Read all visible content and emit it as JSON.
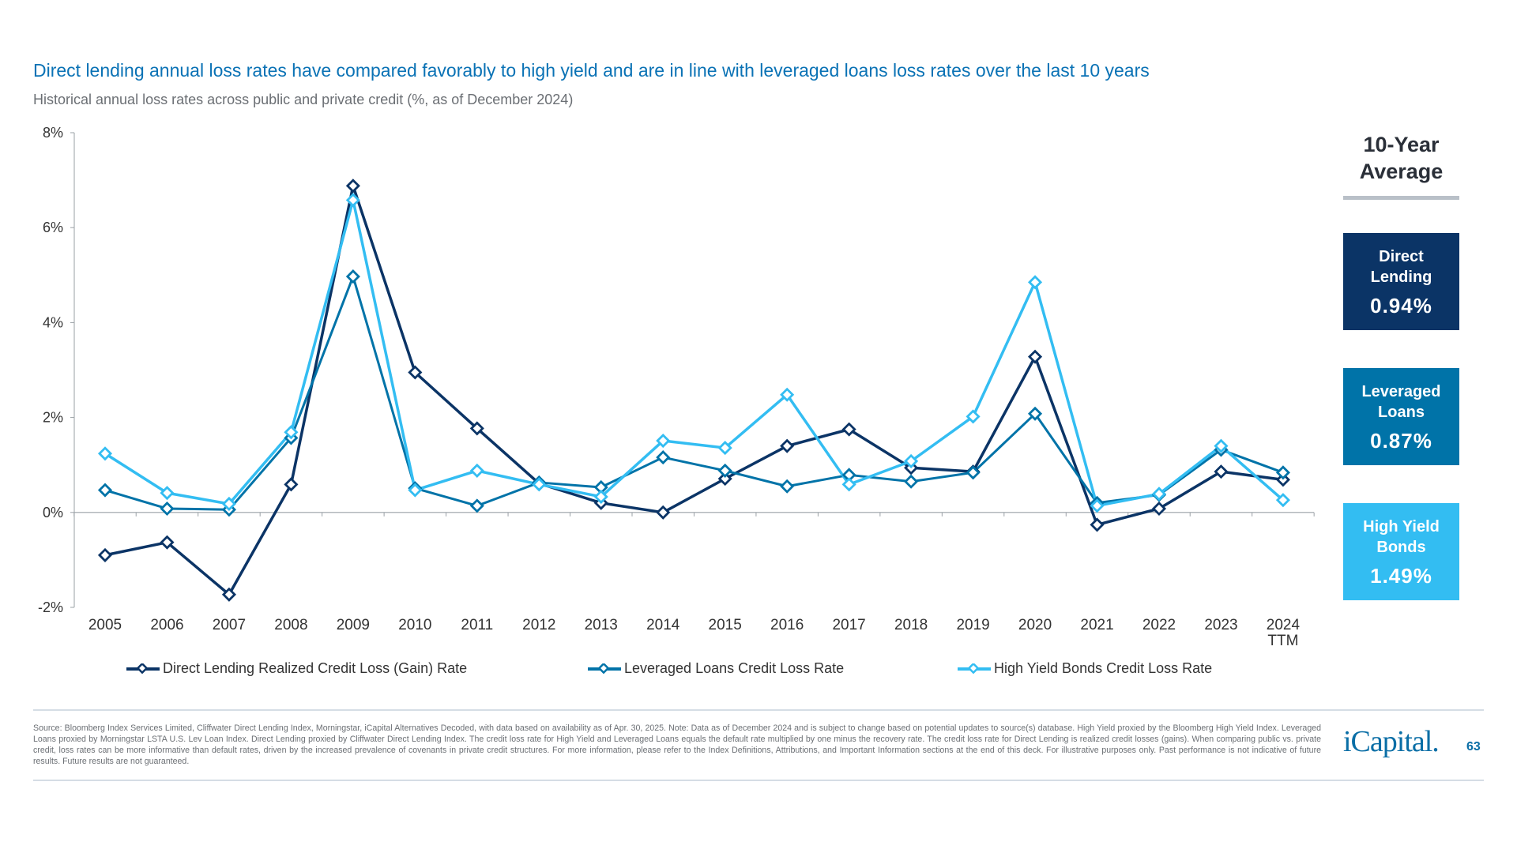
{
  "header": {
    "title": "Direct lending annual loss rates have compared favorably to high yield and are in line with leveraged loans loss rates over the last 10 years",
    "subtitle": "Historical annual loss rates across public and private credit (%, as of December 2024)"
  },
  "chart_data": {
    "type": "line",
    "title": "",
    "xlabel": "",
    "ylabel": "",
    "categories": [
      "2005",
      "2006",
      "2007",
      "2008",
      "2009",
      "2010",
      "2011",
      "2012",
      "2013",
      "2014",
      "2015",
      "2016",
      "2017",
      "2018",
      "2019",
      "2020",
      "2021",
      "2022",
      "2023",
      "2024\nTTM"
    ],
    "category_labels": [
      [
        "2005"
      ],
      [
        "2006"
      ],
      [
        "2007"
      ],
      [
        "2008"
      ],
      [
        "2009"
      ],
      [
        "2010"
      ],
      [
        "2011"
      ],
      [
        "2012"
      ],
      [
        "2013"
      ],
      [
        "2014"
      ],
      [
        "2015"
      ],
      [
        "2016"
      ],
      [
        "2017"
      ],
      [
        "2018"
      ],
      [
        "2019"
      ],
      [
        "2020"
      ],
      [
        "2021"
      ],
      [
        "2022"
      ],
      [
        "2023"
      ],
      [
        "2024",
        "TTM"
      ]
    ],
    "ylim": [
      -2,
      8
    ],
    "yticks": [
      -2,
      0,
      2,
      4,
      6,
      8
    ],
    "ytick_labels": [
      "-2%",
      "0%",
      "2%",
      "4%",
      "6%",
      "8%"
    ],
    "grid": false,
    "legend_position": "bottom",
    "marker": "diamond",
    "series": [
      {
        "name": "Direct Lending Realized Credit Loss (Gain) Rate",
        "color": "#0b3466",
        "values": [
          -0.9,
          -0.63,
          -1.73,
          0.59,
          6.88,
          2.95,
          1.77,
          0.61,
          0.2,
          0.0,
          0.71,
          1.4,
          1.75,
          0.94,
          0.86,
          3.28,
          -0.26,
          0.08,
          0.86,
          0.69
        ]
      },
      {
        "name": "Leveraged Loans Credit Loss Rate",
        "color": "#0073a8",
        "values": [
          0.47,
          0.08,
          0.06,
          1.57,
          4.97,
          0.51,
          0.14,
          0.63,
          0.53,
          1.16,
          0.88,
          0.55,
          0.79,
          0.65,
          0.84,
          2.08,
          0.2,
          0.37,
          1.32,
          0.84
        ]
      },
      {
        "name": "High Yield Bonds Credit Loss Rate",
        "color": "#33bdf2",
        "values": [
          1.24,
          0.41,
          0.18,
          1.69,
          6.58,
          0.47,
          0.88,
          0.59,
          0.33,
          1.51,
          1.36,
          2.48,
          0.59,
          1.08,
          2.02,
          4.85,
          0.14,
          0.39,
          1.4,
          0.26
        ]
      }
    ]
  },
  "averages": {
    "heading_line1": "10-Year",
    "heading_line2": "Average",
    "items": [
      {
        "label_line1": "Direct",
        "label_line2": "Lending",
        "value": "0.94%",
        "color": "#0b3466"
      },
      {
        "label_line1": "Leveraged",
        "label_line2": "Loans",
        "value": "0.87%",
        "color": "#0073a8"
      },
      {
        "label_line1": "High Yield",
        "label_line2": "Bonds",
        "value": "1.49%",
        "color": "#33bdf2"
      }
    ]
  },
  "footer": {
    "source": "Source: Bloomberg Index Services Limited, Cliffwater Direct Lending Index, Morningstar, iCapital Alternatives Decoded, with data based on availability as of Apr. 30, 2025. Note: Data as of December 2024 and is subject to change based on potential updates to source(s) database. High Yield proxied by the Bloomberg High Yield Index. Leveraged Loans proxied by Morningstar LSTA U.S. Lev Loan Index. Direct Lending proxied by Cliffwater Direct Lending Index. The credit loss rate for High Yield and Leveraged Loans equals the default rate multiplied by one minus the recovery rate. The credit loss rate for Direct Lending is realized credit losses (gains). When comparing public vs. private credit, loss rates can be more informative than default rates, driven by the increased prevalence of covenants in private credit structures. For more information, please refer to the Index Definitions, Attributions, and Important Information sections at the end of this deck. For illustrative purposes only. Past performance is not indicative of future results. Future results are not guaranteed.",
    "logo": "iCapital.",
    "page_number": "63"
  }
}
